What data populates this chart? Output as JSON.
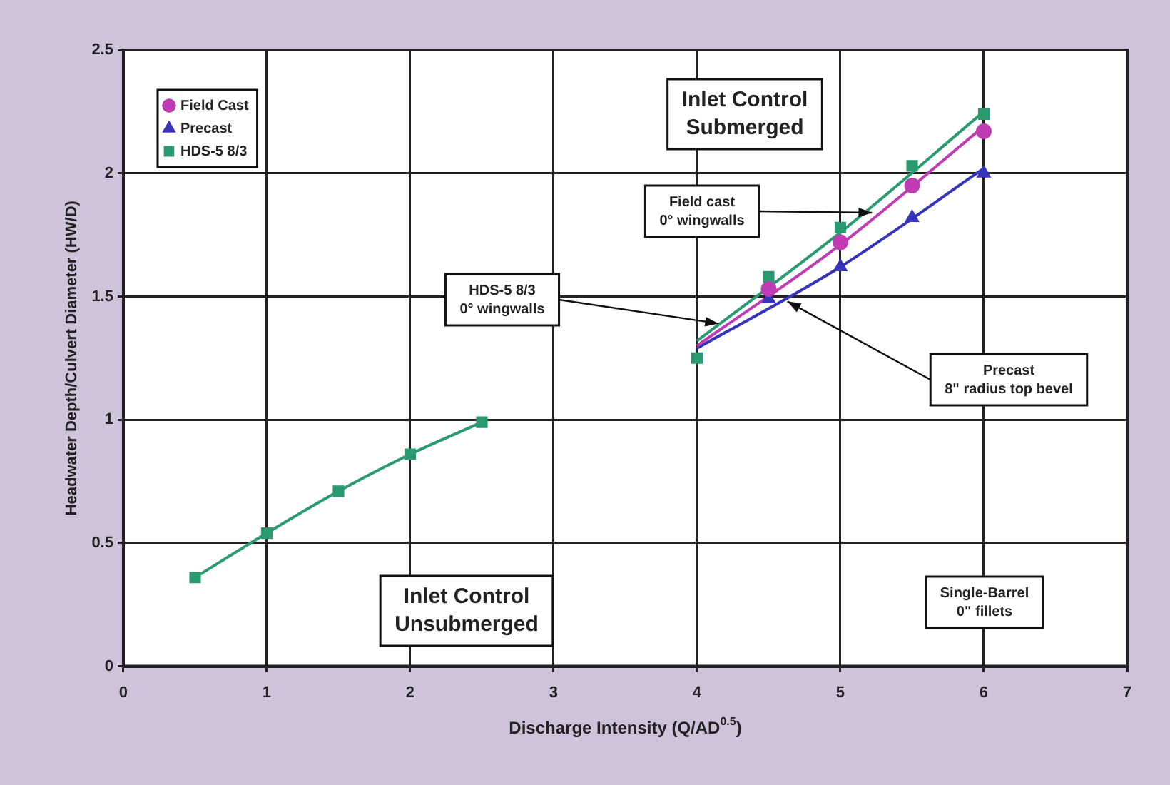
{
  "chart_data": {
    "type": "scatter",
    "xlabel": "Discharge Intensity (Q/AD$^{0.5}$)",
    "ylabel": "Headwater Depth/Culvert Diameter (HW/D)",
    "xlim": [
      0,
      7
    ],
    "xticks": [
      0,
      1,
      2,
      3,
      4,
      5,
      6,
      7
    ],
    "ylim": [
      0,
      2.5
    ],
    "yticks": [
      0,
      0.5,
      1,
      1.5,
      2,
      2.5
    ],
    "grid": true,
    "legend": "top left",
    "series": [
      {
        "name": "Field Cast",
        "type": "scatter",
        "marker": "circle",
        "color": "#c03cb4",
        "x": [
          4.5,
          5,
          5.5,
          6
        ],
        "values": [
          1.53,
          1.72,
          1.95,
          2.17
        ]
      },
      {
        "name": "Precast",
        "type": "scatter",
        "marker": "triangle",
        "color": "#3434bc",
        "x": [
          4.5,
          5,
          5.5,
          6
        ],
        "values": [
          1.49,
          1.62,
          1.82,
          2.0
        ]
      },
      {
        "name": "HDS-5 8/3",
        "type": "scatter",
        "marker": "square",
        "color": "#2a9a70",
        "x": [
          0.5,
          1,
          1.5,
          2,
          2.5,
          4,
          4.5,
          5,
          5.5,
          6
        ],
        "values": [
          0.36,
          0.54,
          0.71,
          0.86,
          0.99,
          1.25,
          1.58,
          1.78,
          2.03,
          2.24
        ]
      },
      {
        "type": "line",
        "marker": "none",
        "line_style": "solid",
        "color": "#2a9a70",
        "x": [
          0.5,
          1,
          1.5,
          2,
          2.5
        ],
        "values": [
          0.36,
          0.54,
          0.71,
          0.86,
          0.99
        ]
      },
      {
        "type": "line",
        "marker": "none",
        "line_style": "solid",
        "color": "#2a9a70",
        "x": [
          4,
          5,
          6
        ],
        "values": [
          1.32,
          1.76,
          2.25
        ]
      },
      {
        "type": "line",
        "marker": "none",
        "line_style": "solid",
        "color": "#c03cb4",
        "x": [
          4,
          5,
          6
        ],
        "values": [
          1.3,
          1.71,
          2.19
        ]
      },
      {
        "type": "line",
        "marker": "none",
        "line_style": "solid",
        "color": "#3434bc",
        "x": [
          4,
          5,
          6
        ],
        "values": [
          1.29,
          1.62,
          2.02
        ]
      }
    ],
    "annotations": [
      "Inlet Control\nSubmerged",
      {
        "text": "Field cast\n0° wingwalls",
        "x": 5.22,
        "y": 1.84
      },
      {
        "text": "HDS-5 8/3\n0° wingwalls",
        "x": 4.15,
        "y": 1.39
      },
      {
        "text": "Precast\n8\" radius top bevel",
        "x": 4.63,
        "y": 1.48
      },
      "Inlet Control\nUnsubmerged",
      "Single-Barrel\n0\" fillets"
    ]
  }
}
